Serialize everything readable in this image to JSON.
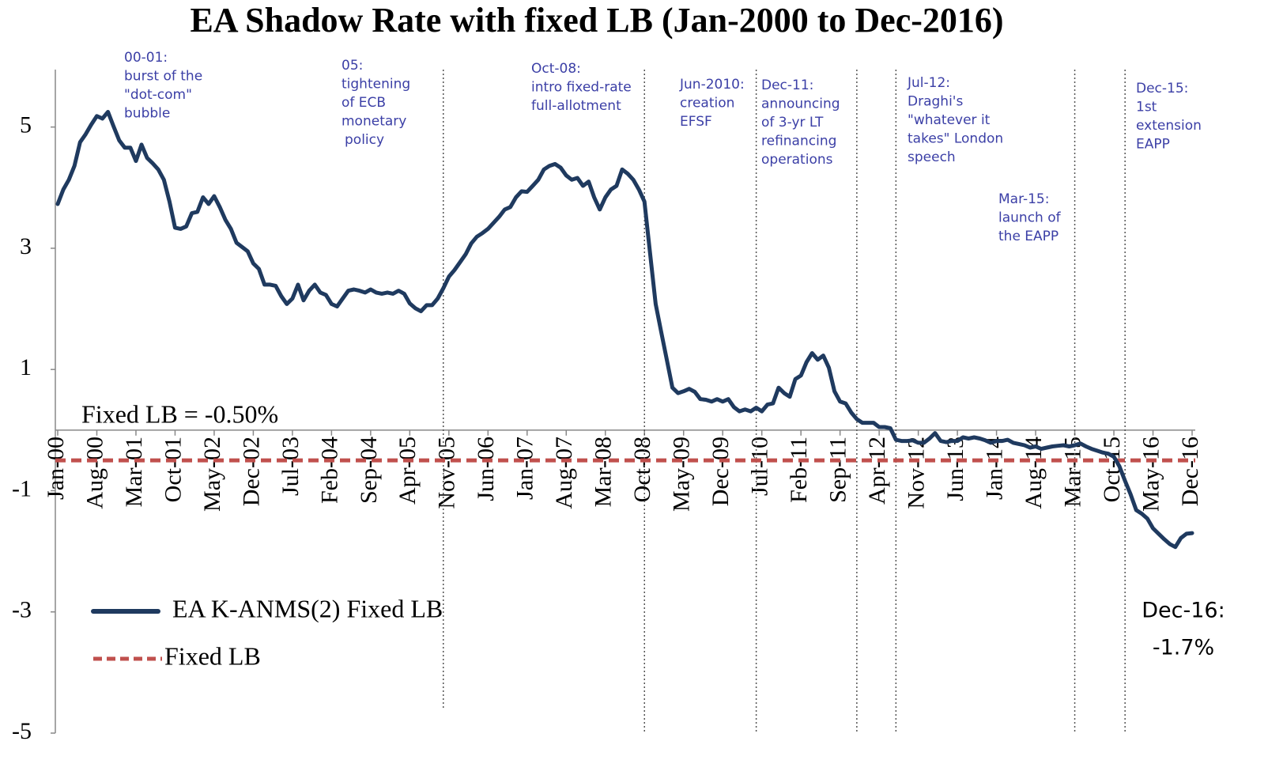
{
  "chart_data": {
    "type": "line",
    "title": "EA Shadow Rate with fixed LB (Jan-2000 to Dec-2016)",
    "categories": [
      "Jan-00",
      null,
      null,
      null,
      null,
      null,
      null,
      "Aug-00",
      null,
      null,
      null,
      null,
      null,
      null,
      "Mar-01",
      null,
      null,
      null,
      null,
      null,
      null,
      "Oct-01",
      null,
      null,
      null,
      null,
      null,
      null,
      "May-02",
      null,
      null,
      null,
      null,
      null,
      null,
      "Dec-02",
      null,
      null,
      null,
      null,
      null,
      null,
      "Jul-03",
      null,
      null,
      null,
      null,
      null,
      null,
      "Feb-04",
      null,
      null,
      null,
      null,
      null,
      null,
      "Sep-04",
      null,
      null,
      null,
      null,
      null,
      null,
      "Apr-05",
      null,
      null,
      null,
      null,
      null,
      null,
      "Nov-05",
      null,
      null,
      null,
      null,
      null,
      null,
      "Jun-06",
      null,
      null,
      null,
      null,
      null,
      null,
      "Jan-07",
      null,
      null,
      null,
      null,
      null,
      null,
      "Aug-07",
      null,
      null,
      null,
      null,
      null,
      null,
      "Mar-08",
      null,
      null,
      null,
      null,
      null,
      null,
      "Oct-08",
      null,
      null,
      null,
      null,
      null,
      null,
      "May-09",
      null,
      null,
      null,
      null,
      null,
      null,
      "Dec-09",
      null,
      null,
      null,
      null,
      null,
      null,
      "Jul-10",
      null,
      null,
      null,
      null,
      null,
      null,
      "Feb-11",
      null,
      null,
      null,
      null,
      null,
      null,
      "Sep-11",
      null,
      null,
      null,
      null,
      null,
      null,
      "Apr-12",
      null,
      null,
      null,
      null,
      null,
      null,
      "Nov-12",
      null,
      null,
      null,
      null,
      null,
      null,
      "Jun-13",
      null,
      null,
      null,
      null,
      null,
      null,
      "Jan-14",
      null,
      null,
      null,
      null,
      null,
      null,
      "Aug-14",
      null,
      null,
      null,
      null,
      null,
      null,
      "Mar-15",
      null,
      null,
      null,
      null,
      null,
      null,
      "Oct-15",
      null,
      null,
      null,
      null,
      null,
      null,
      "May-16",
      null,
      null,
      null,
      null,
      null,
      null,
      "Dec-16"
    ],
    "series": [
      {
        "name": "EA K-ANMS(2) Fixed LB",
        "color": "#1f3a5f",
        "values": [
          3.73,
          3.97,
          4.13,
          4.36,
          4.75,
          4.88,
          5.04,
          5.18,
          5.14,
          5.25,
          5.01,
          4.78,
          4.66,
          4.66,
          4.44,
          4.71,
          4.49,
          4.4,
          4.3,
          4.13,
          3.77,
          3.34,
          3.32,
          3.36,
          3.58,
          3.6,
          3.84,
          3.73,
          3.86,
          3.68,
          3.47,
          3.32,
          3.09,
          3.02,
          2.95,
          2.75,
          2.66,
          2.4,
          2.4,
          2.38,
          2.21,
          2.08,
          2.17,
          2.4,
          2.14,
          2.3,
          2.4,
          2.27,
          2.23,
          2.08,
          2.04,
          2.17,
          2.3,
          2.32,
          2.3,
          2.27,
          2.32,
          2.27,
          2.25,
          2.27,
          2.25,
          2.3,
          2.25,
          2.09,
          2.01,
          1.96,
          2.06,
          2.06,
          2.17,
          2.34,
          2.53,
          2.64,
          2.77,
          2.9,
          3.08,
          3.19,
          3.25,
          3.32,
          3.42,
          3.52,
          3.64,
          3.68,
          3.84,
          3.94,
          3.93,
          4.03,
          4.13,
          4.3,
          4.36,
          4.39,
          4.33,
          4.2,
          4.13,
          4.16,
          4.03,
          4.1,
          3.84,
          3.64,
          3.84,
          3.97,
          4.03,
          4.3,
          4.23,
          4.13,
          3.97,
          3.77,
          2.92,
          2.08,
          1.62,
          1.16,
          0.7,
          0.61,
          0.64,
          0.68,
          0.63,
          0.51,
          0.5,
          0.47,
          0.51,
          0.47,
          0.51,
          0.38,
          0.31,
          0.34,
          0.31,
          0.37,
          0.31,
          0.42,
          0.44,
          0.7,
          0.61,
          0.55,
          0.84,
          0.9,
          1.12,
          1.27,
          1.16,
          1.23,
          1.03,
          0.64,
          0.47,
          0.44,
          0.29,
          0.18,
          0.12,
          0.12,
          0.12,
          0.05,
          0.05,
          0.03,
          -0.16,
          -0.18,
          -0.18,
          -0.17,
          -0.21,
          -0.21,
          -0.14,
          -0.05,
          -0.18,
          -0.2,
          -0.18,
          -0.18,
          -0.12,
          -0.14,
          -0.12,
          -0.14,
          -0.17,
          -0.21,
          -0.18,
          -0.18,
          -0.16,
          -0.21,
          -0.23,
          -0.25,
          -0.29,
          -0.27,
          -0.31,
          -0.29,
          -0.27,
          -0.26,
          -0.25,
          -0.27,
          -0.25,
          -0.22,
          -0.27,
          -0.31,
          -0.34,
          -0.37,
          -0.39,
          -0.44,
          -0.6,
          -0.84,
          -1.06,
          -1.32,
          -1.38,
          -1.46,
          -1.62,
          -1.71,
          -1.8,
          -1.88,
          -1.93,
          -1.78,
          -1.71,
          -1.7
        ]
      }
    ],
    "reference_lines": [
      {
        "name": "Fixed LB",
        "value": -0.5,
        "color": "#c0504d",
        "dashed": true,
        "label": "Fixed LB = -0.50%"
      }
    ],
    "ylim": [
      -5,
      6
    ],
    "yticks": [
      -5,
      -3,
      -1,
      1,
      3,
      5
    ],
    "grid": false,
    "events": [
      {
        "text": [
          "00-01:",
          "burst of the",
          "\"dot-com\"",
          "bubble"
        ]
      },
      {
        "category_index": 69,
        "text": [
          "05:",
          "tightening",
          "of ECB",
          "monetary",
          "policy"
        ]
      },
      {
        "category_index": 105,
        "text": [
          "Oct-08:",
          "intro fixed-rate",
          "full-allotment"
        ]
      },
      {
        "category_index": 125,
        "text": [
          "Jun-2010:",
          "creation",
          "EFSF"
        ]
      },
      {
        "category_index": 143,
        "text": [
          "Dec-11:",
          "announcing",
          "of 3-yr LT",
          "refinancing",
          "operations"
        ]
      },
      {
        "category_index": 150,
        "text": [
          "Jul-12:",
          "Draghi's",
          "\"whatever it",
          "takes\" London",
          "speech"
        ]
      },
      {
        "category_index": 182,
        "text": [
          "Mar-15:",
          "launch of",
          "the EAPP"
        ]
      },
      {
        "category_index": 191,
        "text": [
          "Dec-15:",
          "1st",
          "extension",
          "EAPP"
        ]
      }
    ],
    "end_label": [
      "Dec-16:",
      "-1.7%"
    ]
  }
}
